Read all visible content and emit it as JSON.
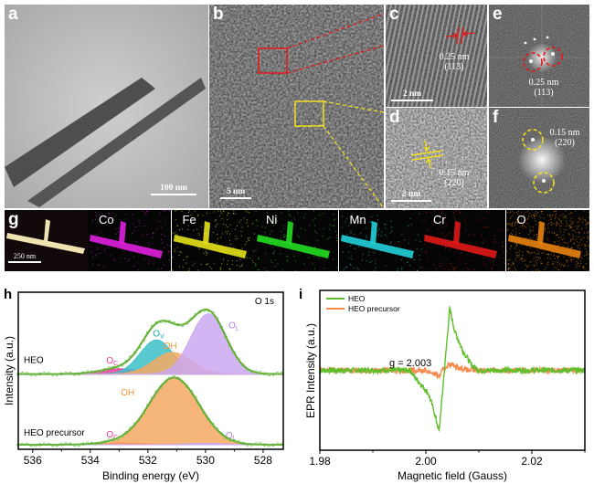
{
  "panels": {
    "a": {
      "label": "a",
      "scale_bar": "100 nm"
    },
    "b": {
      "label": "b",
      "scale_bar": "5 nm"
    },
    "c": {
      "label": "c",
      "d_spacing": "0.25 nm",
      "plane": "(113)",
      "scale_bar": "2 nm"
    },
    "d": {
      "label": "d",
      "d_spacing": "0.15 nm",
      "plane": "(220)",
      "scale_bar": "2 nm"
    },
    "e": {
      "label": "e",
      "d_spacing": "0.25 nm",
      "plane": "(113)"
    },
    "f": {
      "label": "f",
      "d_spacing": "0.15 nm",
      "plane": "(220)"
    },
    "g": {
      "label": "g",
      "scale_bar": "250 nm",
      "elements": [
        {
          "name": "Co",
          "color": "#e020e0"
        },
        {
          "name": "Fe",
          "color": "#e6e21a"
        },
        {
          "name": "Ni",
          "color": "#22dd22"
        },
        {
          "name": "Mn",
          "color": "#22d0d8"
        },
        {
          "name": "Cr",
          "color": "#e01818"
        },
        {
          "name": "O",
          "color": "#e8820e"
        }
      ]
    }
  },
  "colors": {
    "red_marker": "#e81818",
    "yellow_marker": "#f2e11c",
    "fit_envelope": "#5aaa2a",
    "precursor_epr": "#f58a4f"
  },
  "chart_data": [
    {
      "panel": "h",
      "type": "area",
      "title": "O 1s",
      "xlabel": "Binding energy (eV)",
      "ylabel": "Intensity (a.u.)",
      "xlim": [
        536.5,
        527.3
      ],
      "x_reversed": true,
      "ylim": [
        0,
        2.4
      ],
      "x_ticks": [
        536,
        534,
        532,
        530,
        528
      ],
      "grid": false,
      "series": [
        {
          "name": "HEO",
          "offset": 1.15,
          "peaks": [
            {
              "name": "O",
              "sub": "C",
              "center": 533.0,
              "height": 0.08,
              "fwhm": 1.6,
              "color": "#ea3d9c"
            },
            {
              "name": "O",
              "sub": "V",
              "center": 531.7,
              "height": 0.52,
              "fwhm": 1.35,
              "color": "#3cc0c8"
            },
            {
              "name": "OH",
              "sub": "",
              "center": 531.15,
              "height": 0.33,
              "fwhm": 1.55,
              "color": "#f6a962"
            },
            {
              "name": "O",
              "sub": "L",
              "center": 529.9,
              "height": 0.92,
              "fwhm": 1.45,
              "color": "#cba8f2"
            }
          ]
        },
        {
          "name": "HEO precursor",
          "offset": 0.07,
          "peaks": [
            {
              "name": "O",
              "sub": "C",
              "center": 533.0,
              "height": 0.03,
              "fwhm": 1.8,
              "color": "#ea3d9c"
            },
            {
              "name": "OH",
              "sub": "",
              "center": 531.1,
              "height": 1.02,
              "fwhm": 2.0,
              "color": "#f6a962"
            },
            {
              "name": "O",
              "sub": "L",
              "center": 530.0,
              "height": 0.02,
              "fwhm": 1.6,
              "color": "#cba8f2"
            }
          ]
        }
      ]
    },
    {
      "panel": "i",
      "type": "line",
      "xlabel": "Magnetic field (Gauss)",
      "ylabel": "EPR Intensity (a.u.)",
      "xlim": [
        1.98,
        2.03
      ],
      "ylim": [
        -1.3,
        1.3
      ],
      "x_ticks": [
        "1.98",
        "2.00",
        "2.02"
      ],
      "annotation": "g = 2.003",
      "legend": "top-left",
      "grid": false,
      "series": [
        {
          "name": "HEO",
          "color": "#5fbf2a",
          "x": [
            1.98,
            1.997,
            1.998,
            1.999,
            2.0005,
            2.0015,
            2.0025,
            2.0035,
            2.0045,
            2.0055,
            2.007,
            2.0085,
            2.01,
            2.03
          ],
          "y": [
            0,
            0,
            -0.12,
            -0.22,
            -0.38,
            -0.65,
            -1.0,
            0.0,
            1.0,
            0.62,
            0.32,
            0.1,
            0,
            0
          ]
        },
        {
          "name": "HEO precursor",
          "color": "#f58a4f",
          "x": [
            1.98,
            2.0,
            2.0015,
            2.0025,
            2.0035,
            2.0045,
            2.006,
            2.008,
            2.03
          ],
          "y": [
            0,
            0,
            -0.05,
            -0.1,
            0.04,
            0.1,
            0.05,
            0,
            0
          ]
        }
      ]
    }
  ]
}
